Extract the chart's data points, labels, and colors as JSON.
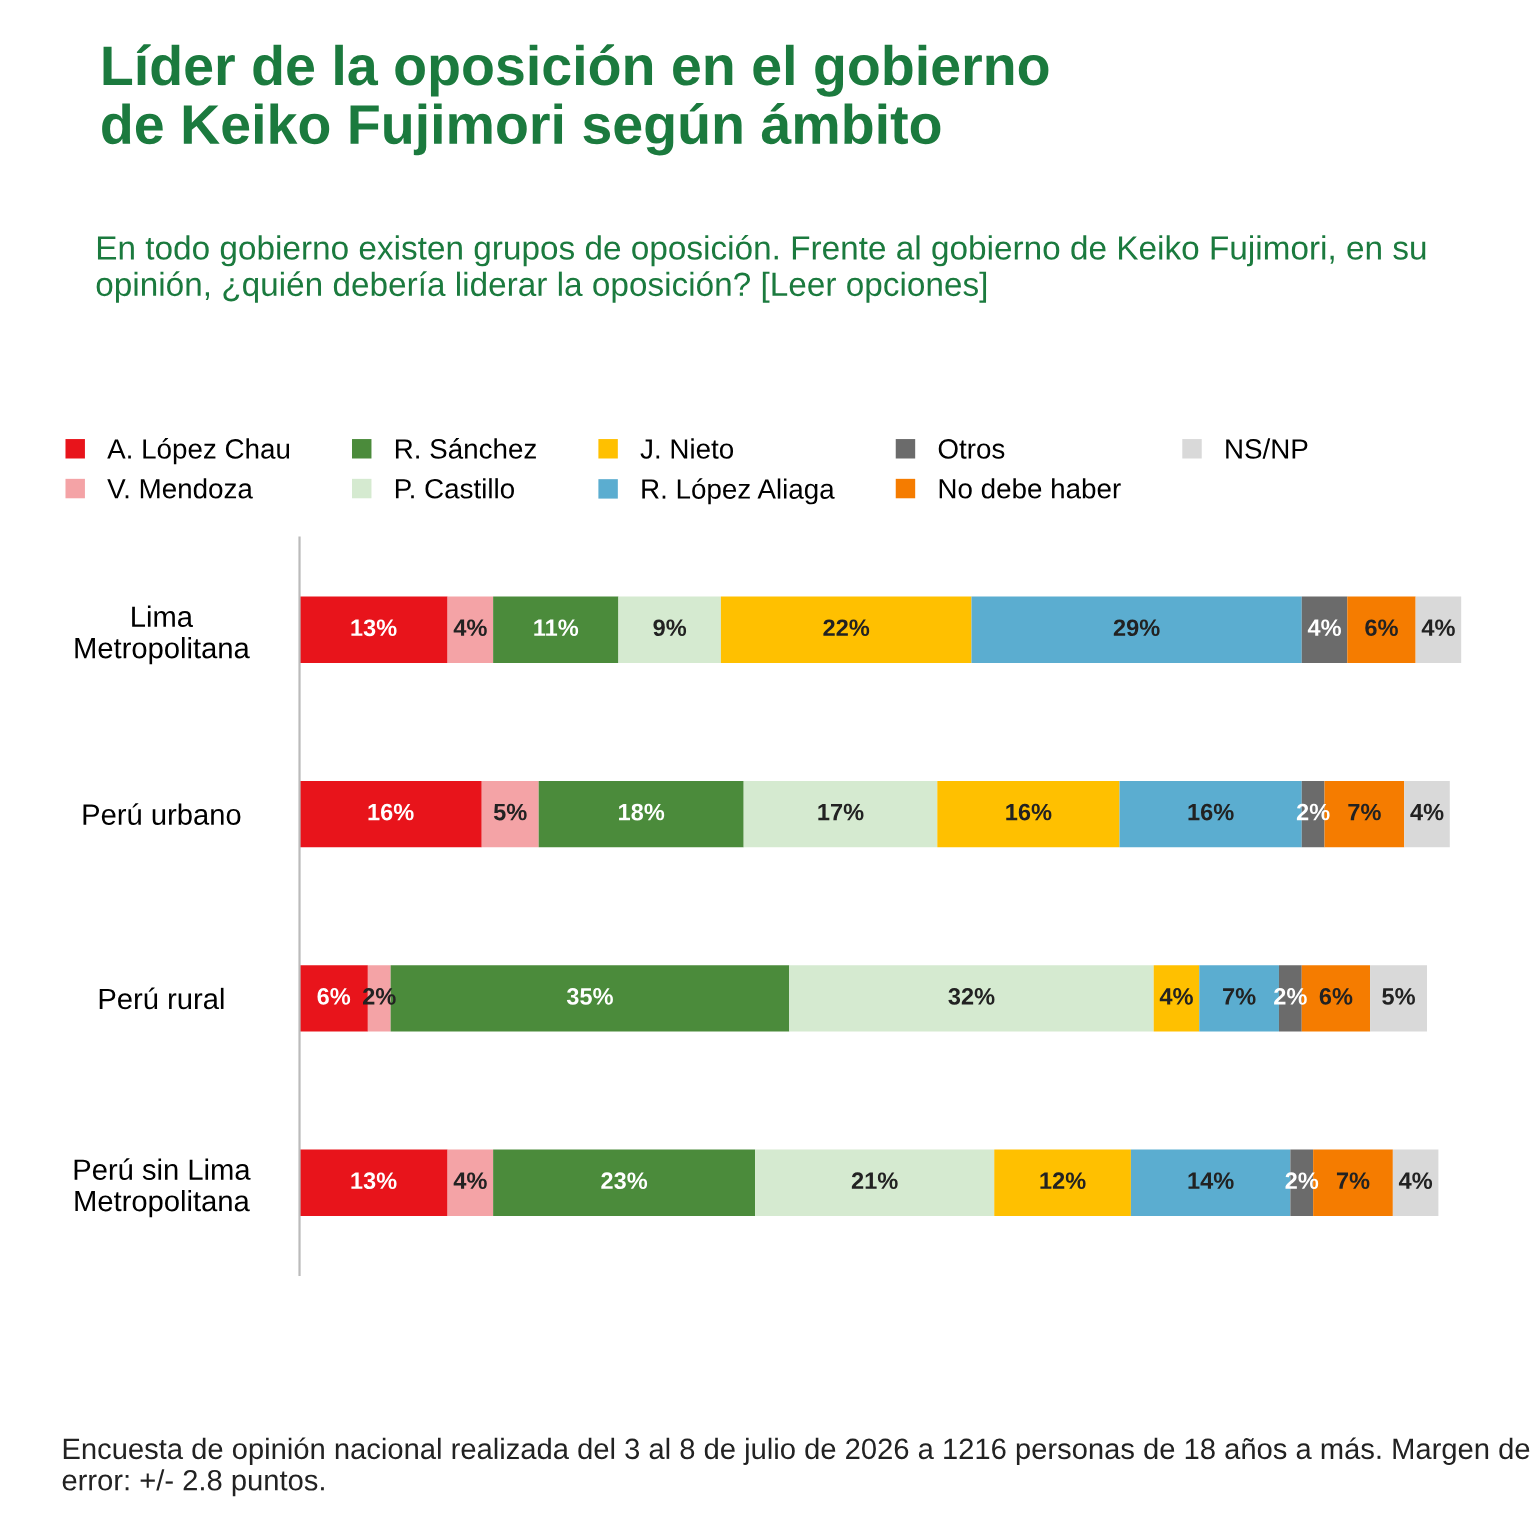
{
  "chart_data": {
    "type": "bar",
    "orientation": "horizontal",
    "stacked": true,
    "title": "Líder de la oposición en el gobierno\nde Keiko Fujimori según ámbito",
    "subtitle": "En todo gobierno existen grupos de oposición. Frente al gobierno de Keiko Fujimori, en su opinión, ¿quién debería liderar la oposición? [Leer opciones]",
    "categories": [
      "Lima\nMetropolitana",
      "Perú urbano",
      "Perú rural",
      "Perú sin Lima\nMetropolitana"
    ],
    "series": [
      {
        "name": "A. López Chau",
        "color": "#e8141b",
        "values": [
          13,
          16,
          6,
          13
        ],
        "value_labels": [
          "13%",
          "16%",
          "6%",
          "13%"
        ]
      },
      {
        "name": "V. Mendoza",
        "color": "#f4a3a6",
        "values": [
          4,
          5,
          2,
          4
        ],
        "value_labels": [
          "4%",
          "5%",
          "2%",
          "4%"
        ]
      },
      {
        "name": "R. Sánchez",
        "color": "#4b8b3b",
        "values": [
          11,
          18,
          35,
          23
        ],
        "value_labels": [
          "11%",
          "18%",
          "35%",
          "23%"
        ]
      },
      {
        "name": "P. Castillo",
        "color": "#d5ead0",
        "values": [
          9,
          17,
          32,
          21
        ],
        "value_labels": [
          "9%",
          "17%",
          "32%",
          "21%"
        ]
      },
      {
        "name": "J. Nieto",
        "color": "#ffc000",
        "values": [
          22,
          16,
          4,
          12
        ],
        "value_labels": [
          "22%",
          "16%",
          "4%",
          "12%"
        ]
      },
      {
        "name": "R. López Aliaga",
        "color": "#5badd0",
        "values": [
          29,
          16,
          7,
          14
        ],
        "value_labels": [
          "29%",
          "16%",
          "7%",
          "14%"
        ]
      },
      {
        "name": "Otros",
        "color": "#6b6b6b",
        "values": [
          4,
          2,
          2,
          2
        ],
        "value_labels": [
          "4%",
          "2%",
          "2%",
          "2%"
        ]
      },
      {
        "name": "No debe haber",
        "color": "#f57c00",
        "values": [
          6,
          7,
          6,
          7
        ],
        "value_labels": [
          "6%",
          "7%",
          "6%",
          "7%"
        ]
      },
      {
        "name": "NS/NP",
        "color": "#d9d9d9",
        "values": [
          4,
          4,
          5,
          4
        ],
        "value_labels": [
          "4%",
          "4%",
          "5%",
          "4%"
        ]
      }
    ],
    "legend": "top",
    "grid": false,
    "annotations": [
      "Encuesta de opinión nacional realizada del 3 al 8 de julio de 2026 a 1216 personas de 18 años a más. Margen de error: +/- 2.8 puntos."
    ]
  }
}
